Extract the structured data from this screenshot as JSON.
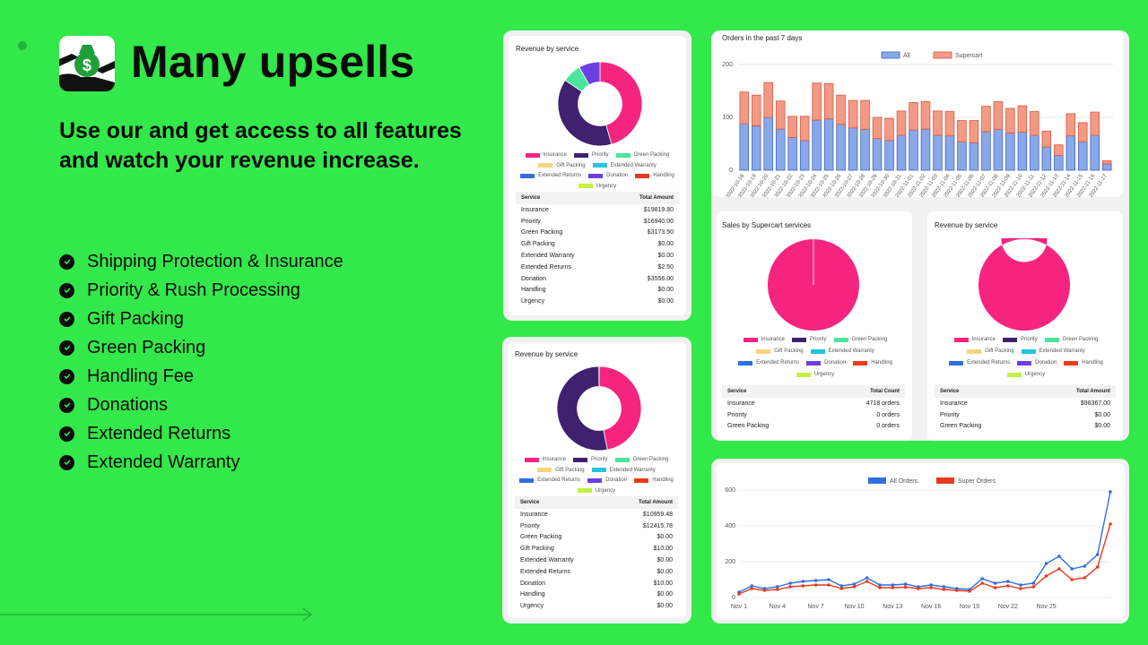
{
  "hero": {
    "title": "Many upsells",
    "subtitle": "Use our and get access to all features and watch your revenue increase.",
    "logo_icon": "money-bag-hands-icon",
    "features": [
      "Shipping Protection & Insurance",
      "Priority & Rush Processing",
      "Gift Packing",
      "Green Packing",
      "Handling Fee",
      "Donations",
      "Extended Returns",
      "Extended Warranty"
    ]
  },
  "colors": {
    "background": "#33e84a",
    "insurance": "#f5257f",
    "priority": "#3f2170",
    "green_packing": "#4ae59a",
    "gift_packing": "#f8d47a",
    "extended_warranty": "#22c6e0",
    "extended_returns": "#2f6fe0",
    "donation": "#6b3fe0",
    "handling": "#e93b1c",
    "urgency": "#c4f045"
  },
  "legend": [
    "Insurance",
    "Priority",
    "Green Packing",
    "Gift Packing",
    "Extended Warranty",
    "Extended Returns",
    "Donation",
    "Handling",
    "Urgency"
  ],
  "card1": {
    "title": "Revenue by service",
    "col1": "Service",
    "col2": "Total Amount",
    "rows": [
      [
        "Insurance",
        "$19819.80"
      ],
      [
        "Priority",
        "$16940.00"
      ],
      [
        "Green Packing",
        "$3173.50"
      ],
      [
        "Gift Packing",
        "$0.00"
      ],
      [
        "Extended Warranty",
        "$0.00"
      ],
      [
        "Extended Returns",
        "$2.50"
      ],
      [
        "Donation",
        "$3556.00"
      ],
      [
        "Handling",
        "$0.00"
      ],
      [
        "Urgency",
        "$0.00"
      ]
    ]
  },
  "card2": {
    "title": "Revenue by service",
    "col1": "Service",
    "col2": "Total Amount",
    "rows": [
      [
        "Insurance",
        "$10959.48"
      ],
      [
        "Priority",
        "$12415.78"
      ],
      [
        "Green Packing",
        "$0.00"
      ],
      [
        "Gift Packing",
        "$10.00"
      ],
      [
        "Extended Warranty",
        "$0.00"
      ],
      [
        "Extended Returns",
        "$0.00"
      ],
      [
        "Donation",
        "$10.00"
      ],
      [
        "Handling",
        "$0.00"
      ],
      [
        "Urgency",
        "$0.00"
      ]
    ]
  },
  "card3": {
    "title": "Orders in the past 7 days"
  },
  "card4": {
    "title": "Sales by Supercart services",
    "col1": "Service",
    "col2": "Total Count",
    "rows": [
      [
        "Insurance",
        "4718 orders"
      ],
      [
        "Priority",
        "0 orders"
      ],
      [
        "Green Packing",
        "0 orders"
      ]
    ]
  },
  "card5": {
    "title": "Revenue by service",
    "col1": "Service",
    "col2": "Total Amount",
    "rows": [
      [
        "Insurance",
        "$98367.00"
      ],
      [
        "Priority",
        "$0.00"
      ],
      [
        "Green Packing",
        "$0.00"
      ]
    ]
  },
  "chart_data": [
    {
      "type": "pie",
      "title": "Revenue by service",
      "donut": true,
      "categories": [
        "Insurance",
        "Priority",
        "Green Packing",
        "Gift Packing",
        "Extended Warranty",
        "Extended Returns",
        "Donation",
        "Handling",
        "Urgency"
      ],
      "values": [
        19819.8,
        16940.0,
        3173.5,
        0,
        0,
        2.5,
        3556.0,
        0,
        0
      ]
    },
    {
      "type": "pie",
      "title": "Revenue by service",
      "donut": true,
      "categories": [
        "Insurance",
        "Priority",
        "Green Packing",
        "Gift Packing",
        "Extended Warranty",
        "Extended Returns",
        "Donation",
        "Handling",
        "Urgency"
      ],
      "values": [
        10959.48,
        12415.78,
        0,
        10,
        0,
        0,
        10,
        0,
        0
      ]
    },
    {
      "type": "bar",
      "stacked": true,
      "title": "Orders in the past 7 days",
      "ylim": [
        0,
        200
      ],
      "yticks": [
        0,
        100,
        200
      ],
      "categories": [
        "2022-10-18",
        "2022-10-19",
        "2022-10-20",
        "2022-10-21",
        "2022-10-22",
        "2022-10-23",
        "2022-10-24",
        "2022-10-25",
        "2022-10-26",
        "2022-10-27",
        "2022-10-28",
        "2022-10-29",
        "2022-10-30",
        "2022-10-31",
        "2022-11-01",
        "2022-11-02",
        "2022-11-03",
        "2022-11-04",
        "2022-11-05",
        "2022-11-06",
        "2022-11-07",
        "2022-11-08",
        "2022-11-09",
        "2022-11-10",
        "2022-11-11",
        "2022-11-12",
        "2022-11-13",
        "2022-11-14",
        "2022-11-15",
        "2022-11-16",
        "2022-11-17"
      ],
      "series": [
        {
          "name": "All",
          "values": [
            88,
            84,
            100,
            78,
            62,
            56,
            95,
            97,
            87,
            80,
            77,
            60,
            56,
            66,
            76,
            78,
            66,
            65,
            54,
            52,
            73,
            77,
            70,
            72,
            66,
            44,
            28,
            65,
            54,
            66,
            12
          ]
        },
        {
          "name": "Supercart",
          "values": [
            60,
            58,
            66,
            53,
            40,
            46,
            70,
            67,
            55,
            52,
            55,
            40,
            42,
            46,
            52,
            52,
            46,
            46,
            40,
            42,
            48,
            53,
            47,
            50,
            45,
            30,
            20,
            42,
            36,
            44,
            6
          ]
        }
      ]
    },
    {
      "type": "pie",
      "title": "Sales by Supercart services",
      "categories": [
        "Insurance",
        "Priority",
        "Green Packing"
      ],
      "values": [
        4718,
        0,
        0
      ]
    },
    {
      "type": "pie",
      "title": "Revenue by service",
      "donut": true,
      "categories": [
        "Insurance",
        "Priority",
        "Green Packing"
      ],
      "values": [
        98367.0,
        0,
        0
      ]
    },
    {
      "type": "line",
      "ylim": [
        0,
        600
      ],
      "yticks": [
        0,
        200,
        400,
        600
      ],
      "xticks": [
        "Nov 1",
        "Nov 4",
        "Nov 7",
        "Nov 10",
        "Nov 13",
        "Nov 16",
        "Nov 19",
        "Nov 22",
        "Nov 25"
      ],
      "series": [
        {
          "name": "All Orders",
          "values": [
            30,
            65,
            50,
            60,
            80,
            90,
            95,
            100,
            65,
            75,
            110,
            70,
            70,
            75,
            60,
            70,
            60,
            50,
            45,
            105,
            80,
            90,
            70,
            80,
            190,
            230,
            160,
            175,
            240,
            590
          ]
        },
        {
          "name": "Super Orders",
          "values": [
            20,
            50,
            40,
            45,
            60,
            65,
            70,
            70,
            50,
            60,
            90,
            55,
            55,
            58,
            50,
            55,
            45,
            40,
            35,
            80,
            55,
            65,
            50,
            60,
            120,
            160,
            100,
            110,
            170,
            410
          ]
        }
      ]
    }
  ]
}
